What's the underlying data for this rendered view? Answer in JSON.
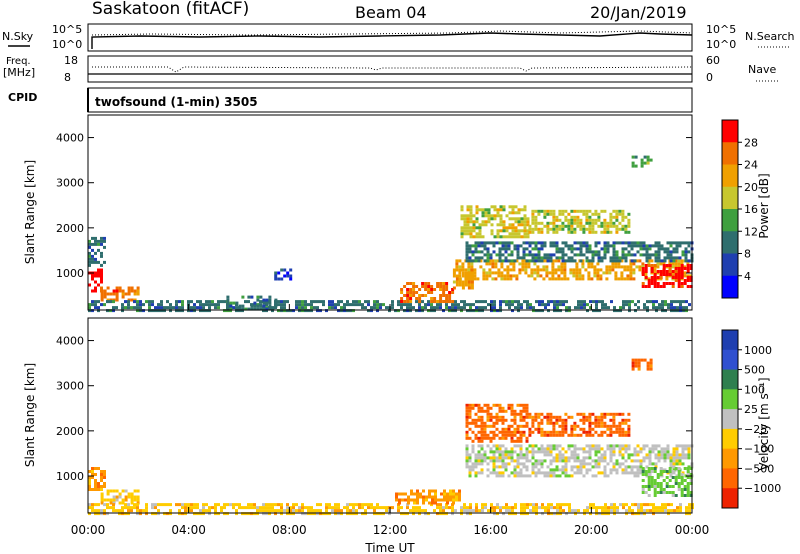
{
  "header": {
    "station": "Saskatoon (fitACF)",
    "beam": "Beam 04",
    "date": "20/Jan/2019"
  },
  "noise_panel": {
    "left_label": "N.Sky",
    "left_ticks": [
      "10^5",
      "10^0"
    ],
    "right_label": "N.Search",
    "right_ticks": [
      "10^5",
      "10^0"
    ]
  },
  "freq_panel": {
    "left_label_1": "Freq.",
    "left_label_2": "[MHz]",
    "left_ticks": [
      "18",
      "8"
    ],
    "right_label": "Nave",
    "right_ticks": [
      "60",
      "0"
    ]
  },
  "cpid": {
    "label": "CPID",
    "text": "twofsound (1-min) 3505"
  },
  "x_axis": {
    "label": "Time UT",
    "ticks": [
      "00:00",
      "04:00",
      "08:00",
      "12:00",
      "16:00",
      "20:00",
      "00:00"
    ]
  },
  "colors": {
    "power": [
      "#0000ff",
      "#1f3fb0",
      "#2f6e6e",
      "#3f9f3f",
      "#c7c72f",
      "#f0a000",
      "#f07000",
      "#ff0000"
    ],
    "velocity": [
      "#1f3fb0",
      "#3050d0",
      "#2f7f4f",
      "#66cc33",
      "#c0c0c0",
      "#ffcc00",
      "#ff9900",
      "#ff6600",
      "#ee2200"
    ],
    "gray_scatter": "#c8c8c0"
  },
  "chart_data": [
    {
      "type": "heatmap",
      "name_key": "power",
      "ylabel": "Slant Range [km]",
      "xlabel": "Time UT",
      "xlim": [
        0,
        24
      ],
      "ylim": [
        180,
        4500
      ],
      "yticks": [
        "1000",
        "2000",
        "3000",
        "4000"
      ],
      "colorbar": {
        "label": "Power [dB]",
        "ticks": [
          "28",
          "24",
          "20",
          "16",
          "12",
          "8",
          "4"
        ]
      },
      "regions": [
        {
          "t": [
            0.0,
            0.5
          ],
          "r": [
            600,
            1100
          ],
          "level": "28"
        },
        {
          "t": [
            0.5,
            2.0
          ],
          "r": [
            400,
            700
          ],
          "level": "24"
        },
        {
          "t": [
            0.0,
            0.6
          ],
          "r": [
            1200,
            1800
          ],
          "level": "8"
        },
        {
          "t": [
            0.0,
            23.9
          ],
          "r": [
            180,
            400
          ],
          "level": "8"
        },
        {
          "t": [
            5.5,
            7.5
          ],
          "r": [
            200,
            500
          ],
          "level": "8"
        },
        {
          "t": [
            7.4,
            8.0
          ],
          "r": [
            900,
            1100
          ],
          "level": "4"
        },
        {
          "t": [
            12.4,
            14.5
          ],
          "r": [
            400,
            800
          ],
          "level": "24"
        },
        {
          "t": [
            14.5,
            15.3
          ],
          "r": [
            700,
            1100
          ],
          "level": "20"
        },
        {
          "t": [
            14.6,
            24.0
          ],
          "r": [
            900,
            1300
          ],
          "level": "20"
        },
        {
          "t": [
            15.0,
            24.0
          ],
          "r": [
            1300,
            1700
          ],
          "level": "8"
        },
        {
          "t": [
            14.8,
            17.5
          ],
          "r": [
            1800,
            2500
          ],
          "level": "16"
        },
        {
          "t": [
            17.5,
            21.5
          ],
          "r": [
            1900,
            2400
          ],
          "level": "16"
        },
        {
          "t": [
            22.0,
            24.0
          ],
          "r": [
            700,
            1200
          ],
          "level": "28"
        },
        {
          "t": [
            21.6,
            22.4
          ],
          "r": [
            3400,
            3600
          ],
          "level": "12"
        }
      ]
    },
    {
      "type": "heatmap",
      "name_key": "velocity",
      "ylabel": "Slant Range [km]",
      "xlabel": "Time UT",
      "xlim": [
        0,
        24
      ],
      "ylim": [
        180,
        4500
      ],
      "yticks": [
        "1000",
        "2000",
        "3000",
        "4000"
      ],
      "colorbar": {
        "label": "Velocity [m s⁻¹]",
        "ticks": [
          "1000",
          "500",
          "100",
          "25",
          "−25",
          "−100",
          "−500",
          "−1000"
        ]
      },
      "regions": [
        {
          "t": [
            0.0,
            0.6
          ],
          "r": [
            700,
            1200
          ],
          "level": "-100"
        },
        {
          "t": [
            0.5,
            2.0
          ],
          "r": [
            400,
            700
          ],
          "level": "-25"
        },
        {
          "t": [
            0.0,
            24.0
          ],
          "r": [
            180,
            400
          ],
          "level": "-25"
        },
        {
          "t": [
            12.2,
            14.8
          ],
          "r": [
            400,
            700
          ],
          "level": "-100"
        },
        {
          "t": [
            15.0,
            24.0
          ],
          "r": [
            1000,
            1700
          ],
          "level": "25"
        },
        {
          "t": [
            15.0,
            17.5
          ],
          "r": [
            1800,
            2600
          ],
          "level": "-500"
        },
        {
          "t": [
            17.5,
            21.5
          ],
          "r": [
            1900,
            2400
          ],
          "level": "-500"
        },
        {
          "t": [
            22.0,
            24.0
          ],
          "r": [
            600,
            1200
          ],
          "level": "100"
        },
        {
          "t": [
            21.6,
            22.4
          ],
          "r": [
            3400,
            3600
          ],
          "level": "-500"
        }
      ]
    }
  ]
}
